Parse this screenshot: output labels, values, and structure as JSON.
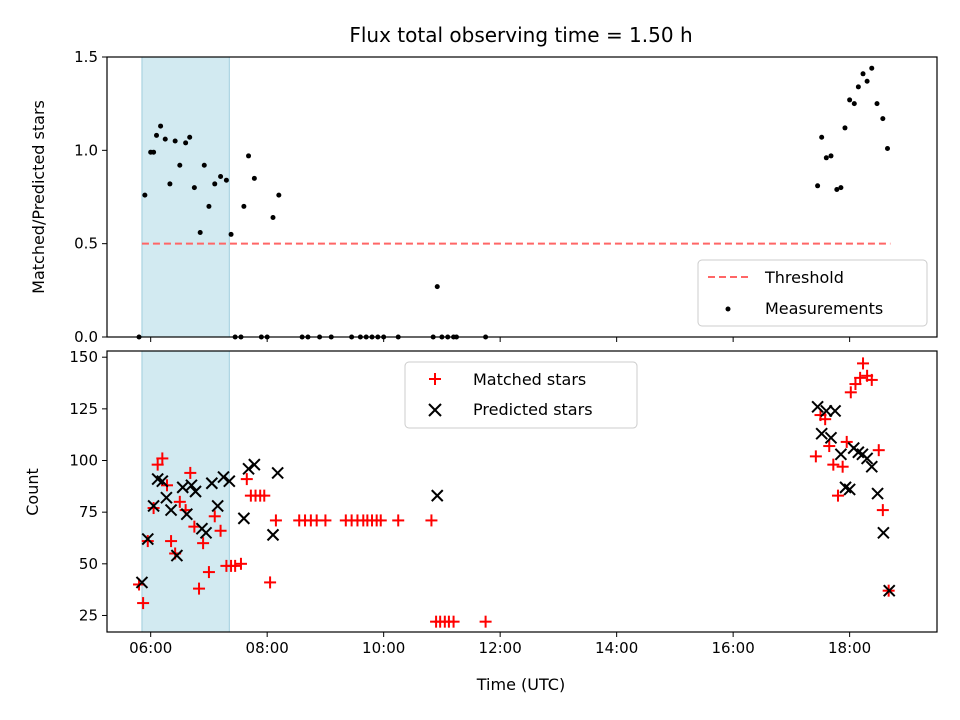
{
  "chart_data": [
    {
      "type": "scatter",
      "title": "Flux total observing time = 1.50 h",
      "xlabel": "",
      "ylabel": "Matched/Predicted stars",
      "ylim": [
        0,
        1.5
      ],
      "yticks": [
        0.0,
        0.5,
        1.0,
        1.5
      ],
      "ytick_labels": [
        "0.0",
        "0.5",
        "1.0",
        "1.5"
      ],
      "xlim": [
        5.25,
        19.5
      ],
      "xticks": [
        6,
        8,
        10,
        12,
        14,
        16,
        18
      ],
      "legend_position": "lower-right",
      "shaded_span": {
        "x_start": 5.85,
        "x_end": 7.35,
        "color": "#add8e6"
      },
      "threshold": {
        "name": "Threshold",
        "value": 0.5,
        "x_start": 5.85,
        "x_end": 18.7,
        "color": "#ff6666"
      },
      "series": [
        {
          "name": "Measurements",
          "color": "#000000",
          "marker": "dot",
          "points": [
            [
              5.8,
              0.0
            ],
            [
              5.9,
              0.76
            ],
            [
              6.0,
              0.99
            ],
            [
              6.05,
              0.99
            ],
            [
              6.1,
              1.08
            ],
            [
              6.17,
              1.13
            ],
            [
              6.25,
              1.06
            ],
            [
              6.33,
              0.82
            ],
            [
              6.42,
              1.05
            ],
            [
              6.5,
              0.92
            ],
            [
              6.6,
              1.04
            ],
            [
              6.67,
              1.07
            ],
            [
              6.75,
              0.8
            ],
            [
              6.85,
              0.56
            ],
            [
              6.92,
              0.92
            ],
            [
              7.0,
              0.7
            ],
            [
              7.1,
              0.82
            ],
            [
              7.2,
              0.86
            ],
            [
              7.3,
              0.84
            ],
            [
              7.38,
              0.55
            ],
            [
              7.45,
              0.0
            ],
            [
              7.55,
              0.0
            ],
            [
              7.6,
              0.7
            ],
            [
              7.68,
              0.97
            ],
            [
              7.78,
              0.85
            ],
            [
              7.9,
              0.0
            ],
            [
              8.0,
              0.0
            ],
            [
              8.1,
              0.64
            ],
            [
              8.2,
              0.76
            ],
            [
              8.6,
              0.0
            ],
            [
              8.7,
              0.0
            ],
            [
              8.9,
              0.0
            ],
            [
              9.1,
              0.0
            ],
            [
              9.45,
              0.0
            ],
            [
              9.6,
              0.0
            ],
            [
              9.7,
              0.0
            ],
            [
              9.8,
              0.0
            ],
            [
              9.9,
              0.0
            ],
            [
              10.0,
              0.0
            ],
            [
              10.25,
              0.0
            ],
            [
              10.85,
              0.0
            ],
            [
              10.92,
              0.27
            ],
            [
              11.0,
              0.0
            ],
            [
              11.1,
              0.0
            ],
            [
              11.2,
              0.0
            ],
            [
              11.25,
              0.0
            ],
            [
              11.75,
              0.0
            ],
            [
              17.45,
              0.81
            ],
            [
              17.52,
              1.07
            ],
            [
              17.6,
              0.96
            ],
            [
              17.68,
              0.97
            ],
            [
              17.78,
              0.79
            ],
            [
              17.85,
              0.8
            ],
            [
              17.92,
              1.12
            ],
            [
              18.0,
              1.27
            ],
            [
              18.08,
              1.25
            ],
            [
              18.15,
              1.34
            ],
            [
              18.23,
              1.41
            ],
            [
              18.3,
              1.37
            ],
            [
              18.38,
              1.44
            ],
            [
              18.47,
              1.25
            ],
            [
              18.57,
              1.17
            ],
            [
              18.65,
              1.01
            ]
          ]
        }
      ]
    },
    {
      "type": "scatter",
      "title": "",
      "xlabel": "Time (UTC)",
      "ylabel": "Count",
      "ylim": [
        17,
        153
      ],
      "yticks": [
        25,
        50,
        75,
        100,
        125,
        150
      ],
      "ytick_labels": [
        "25",
        "50",
        "75",
        "100",
        "125",
        "150"
      ],
      "xlim": [
        5.25,
        19.5
      ],
      "xticks": [
        6,
        8,
        10,
        12,
        14,
        16,
        18
      ],
      "xtick_labels": [
        "06:00",
        "08:00",
        "10:00",
        "12:00",
        "14:00",
        "16:00",
        "18:00"
      ],
      "legend_position": "upper-center",
      "shaded_span": {
        "x_start": 5.85,
        "x_end": 7.35,
        "color": "#add8e6"
      },
      "series": [
        {
          "name": "Matched stars",
          "color": "#ff0000",
          "marker": "plus",
          "points": [
            [
              5.8,
              40
            ],
            [
              5.87,
              31
            ],
            [
              5.95,
              61
            ],
            [
              6.05,
              77
            ],
            [
              6.12,
              98
            ],
            [
              6.2,
              101
            ],
            [
              6.28,
              88
            ],
            [
              6.35,
              61
            ],
            [
              6.42,
              55
            ],
            [
              6.5,
              80
            ],
            [
              6.6,
              76
            ],
            [
              6.68,
              94
            ],
            [
              6.75,
              68
            ],
            [
              6.83,
              38
            ],
            [
              6.9,
              60
            ],
            [
              7.0,
              46
            ],
            [
              7.1,
              73
            ],
            [
              7.2,
              66
            ],
            [
              7.3,
              49
            ],
            [
              7.38,
              49
            ],
            [
              7.45,
              49
            ],
            [
              7.55,
              50
            ],
            [
              7.65,
              91
            ],
            [
              7.72,
              83
            ],
            [
              7.8,
              83
            ],
            [
              7.88,
              83
            ],
            [
              7.95,
              83
            ],
            [
              8.05,
              41
            ],
            [
              8.15,
              71
            ],
            [
              8.55,
              71
            ],
            [
              8.65,
              71
            ],
            [
              8.75,
              71
            ],
            [
              8.85,
              71
            ],
            [
              9.0,
              71
            ],
            [
              9.35,
              71
            ],
            [
              9.45,
              71
            ],
            [
              9.55,
              71
            ],
            [
              9.65,
              71
            ],
            [
              9.72,
              71
            ],
            [
              9.8,
              71
            ],
            [
              9.88,
              71
            ],
            [
              9.95,
              71
            ],
            [
              10.25,
              71
            ],
            [
              10.82,
              71
            ],
            [
              10.9,
              22
            ],
            [
              10.97,
              22
            ],
            [
              11.05,
              22
            ],
            [
              11.12,
              22
            ],
            [
              11.2,
              22
            ],
            [
              11.75,
              22
            ],
            [
              17.42,
              102
            ],
            [
              17.5,
              122
            ],
            [
              17.58,
              120
            ],
            [
              17.65,
              107
            ],
            [
              17.72,
              98
            ],
            [
              17.8,
              83
            ],
            [
              17.88,
              97
            ],
            [
              17.95,
              109
            ],
            [
              18.02,
              133
            ],
            [
              18.1,
              137
            ],
            [
              18.18,
              140
            ],
            [
              18.23,
              147
            ],
            [
              18.3,
              141
            ],
            [
              18.38,
              139
            ],
            [
              18.5,
              105
            ],
            [
              18.57,
              76
            ],
            [
              18.67,
              37
            ]
          ]
        },
        {
          "name": "Predicted stars",
          "color": "#000000",
          "marker": "x",
          "points": [
            [
              5.85,
              41
            ],
            [
              5.95,
              62
            ],
            [
              6.05,
              78
            ],
            [
              6.12,
              91
            ],
            [
              6.2,
              90
            ],
            [
              6.27,
              82
            ],
            [
              6.35,
              76
            ],
            [
              6.45,
              54
            ],
            [
              6.55,
              87
            ],
            [
              6.62,
              74
            ],
            [
              6.7,
              88
            ],
            [
              6.77,
              85
            ],
            [
              6.88,
              67
            ],
            [
              6.95,
              65
            ],
            [
              7.05,
              89
            ],
            [
              7.15,
              78
            ],
            [
              7.25,
              92
            ],
            [
              7.35,
              90
            ],
            [
              7.6,
              72
            ],
            [
              7.68,
              96
            ],
            [
              7.78,
              98
            ],
            [
              8.1,
              64
            ],
            [
              8.18,
              94
            ],
            [
              10.92,
              83
            ],
            [
              17.45,
              126
            ],
            [
              17.52,
              113
            ],
            [
              17.6,
              124
            ],
            [
              17.68,
              111
            ],
            [
              17.75,
              124
            ],
            [
              17.85,
              103
            ],
            [
              17.93,
              87
            ],
            [
              18.0,
              86
            ],
            [
              18.07,
              106
            ],
            [
              18.15,
              104
            ],
            [
              18.22,
              103
            ],
            [
              18.3,
              101
            ],
            [
              18.38,
              97
            ],
            [
              18.48,
              84
            ],
            [
              18.58,
              65
            ],
            [
              18.68,
              37
            ]
          ]
        }
      ]
    }
  ]
}
